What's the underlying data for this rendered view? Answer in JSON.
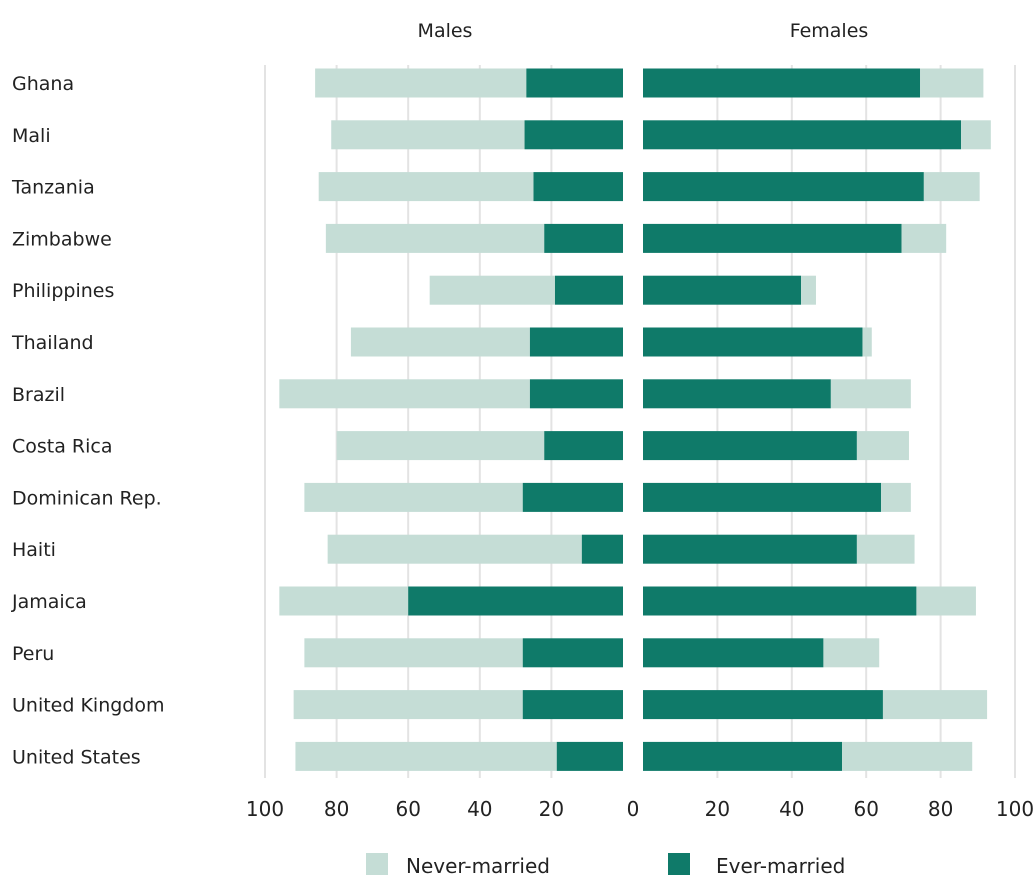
{
  "chart_data": {
    "type": "bar",
    "orientation": "horizontal",
    "stacked": true,
    "panels": [
      {
        "title": "Males"
      },
      {
        "title": "Females"
      }
    ],
    "categories": [
      "Ghana",
      "Mali",
      "Tanzania",
      "Zimbabwe",
      "Philippines",
      "Thailand",
      "Brazil",
      "Costa Rica",
      "Dominican Rep.",
      "Haiti",
      "Jamaica",
      "Peru",
      "United Kingdom",
      "United States"
    ],
    "males": {
      "ever_married": [
        27,
        27.5,
        25,
        22,
        19,
        26,
        26,
        22,
        28,
        11.5,
        60,
        28,
        28,
        18.5
      ],
      "never_married": [
        59,
        54,
        60,
        61,
        35,
        50,
        70,
        58,
        61,
        71,
        36,
        61,
        64,
        73
      ]
    },
    "females": {
      "ever_married": [
        74.5,
        85.5,
        75.5,
        69.5,
        42.5,
        59,
        50.5,
        57.5,
        64,
        57.5,
        73.5,
        48.5,
        64.5,
        53.5
      ],
      "never_married": [
        17,
        8,
        15,
        12,
        4,
        2.5,
        21.5,
        14,
        8,
        15.5,
        16,
        15,
        28,
        35
      ]
    },
    "series": [
      {
        "name": "Never-married",
        "color": "#c5ddd6"
      },
      {
        "name": "Ever-married",
        "color": "#0f7a69"
      }
    ],
    "xlim": [
      0,
      100
    ],
    "xticks_males": [
      "100",
      "80",
      "60",
      "40",
      "20",
      "0"
    ],
    "xticks_females": [
      "20",
      "40",
      "60",
      "80",
      "100"
    ],
    "grid": true,
    "legend_position": "bottom"
  }
}
